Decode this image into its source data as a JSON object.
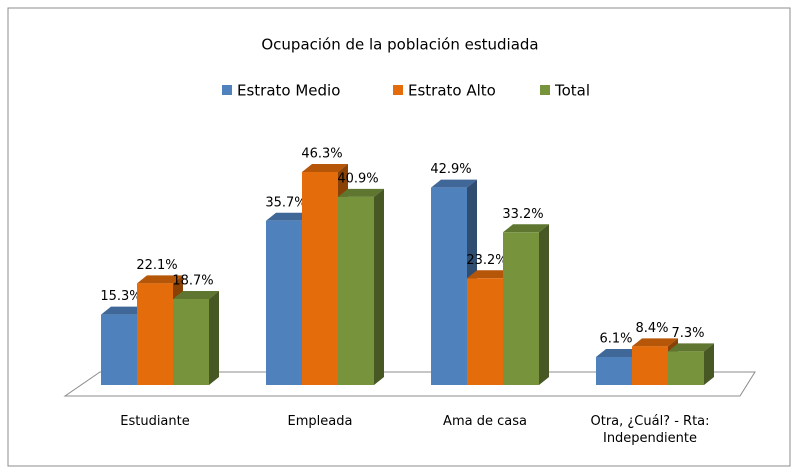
{
  "chart_data": {
    "type": "bar3d",
    "title": "Ocupación  de la población estudiada",
    "categories": [
      "Estudiante",
      "Empleada",
      "Ama de casa",
      "Otra, ¿Cuál? - Rta: Independiente"
    ],
    "series": [
      {
        "name": "Estrato Medio",
        "color": "#4f81bd",
        "values": [
          15.3,
          35.7,
          42.9,
          6.1
        ],
        "value_labels": [
          "15.3%",
          "35.7%",
          "42.9%",
          "6.1%"
        ]
      },
      {
        "name": "Estrato Alto",
        "color": "#e46c0a",
        "values": [
          22.1,
          46.3,
          23.2,
          8.4
        ],
        "value_labels": [
          "22.1%",
          "46.3%",
          "23.2%",
          "8.4%"
        ]
      },
      {
        "name": "Total",
        "color": "#77933c",
        "values": [
          18.7,
          40.9,
          33.2,
          7.3
        ],
        "value_labels": [
          "18.7%",
          "40.9%",
          "33.2%",
          "7.3%"
        ]
      }
    ],
    "legend": "top"
  }
}
